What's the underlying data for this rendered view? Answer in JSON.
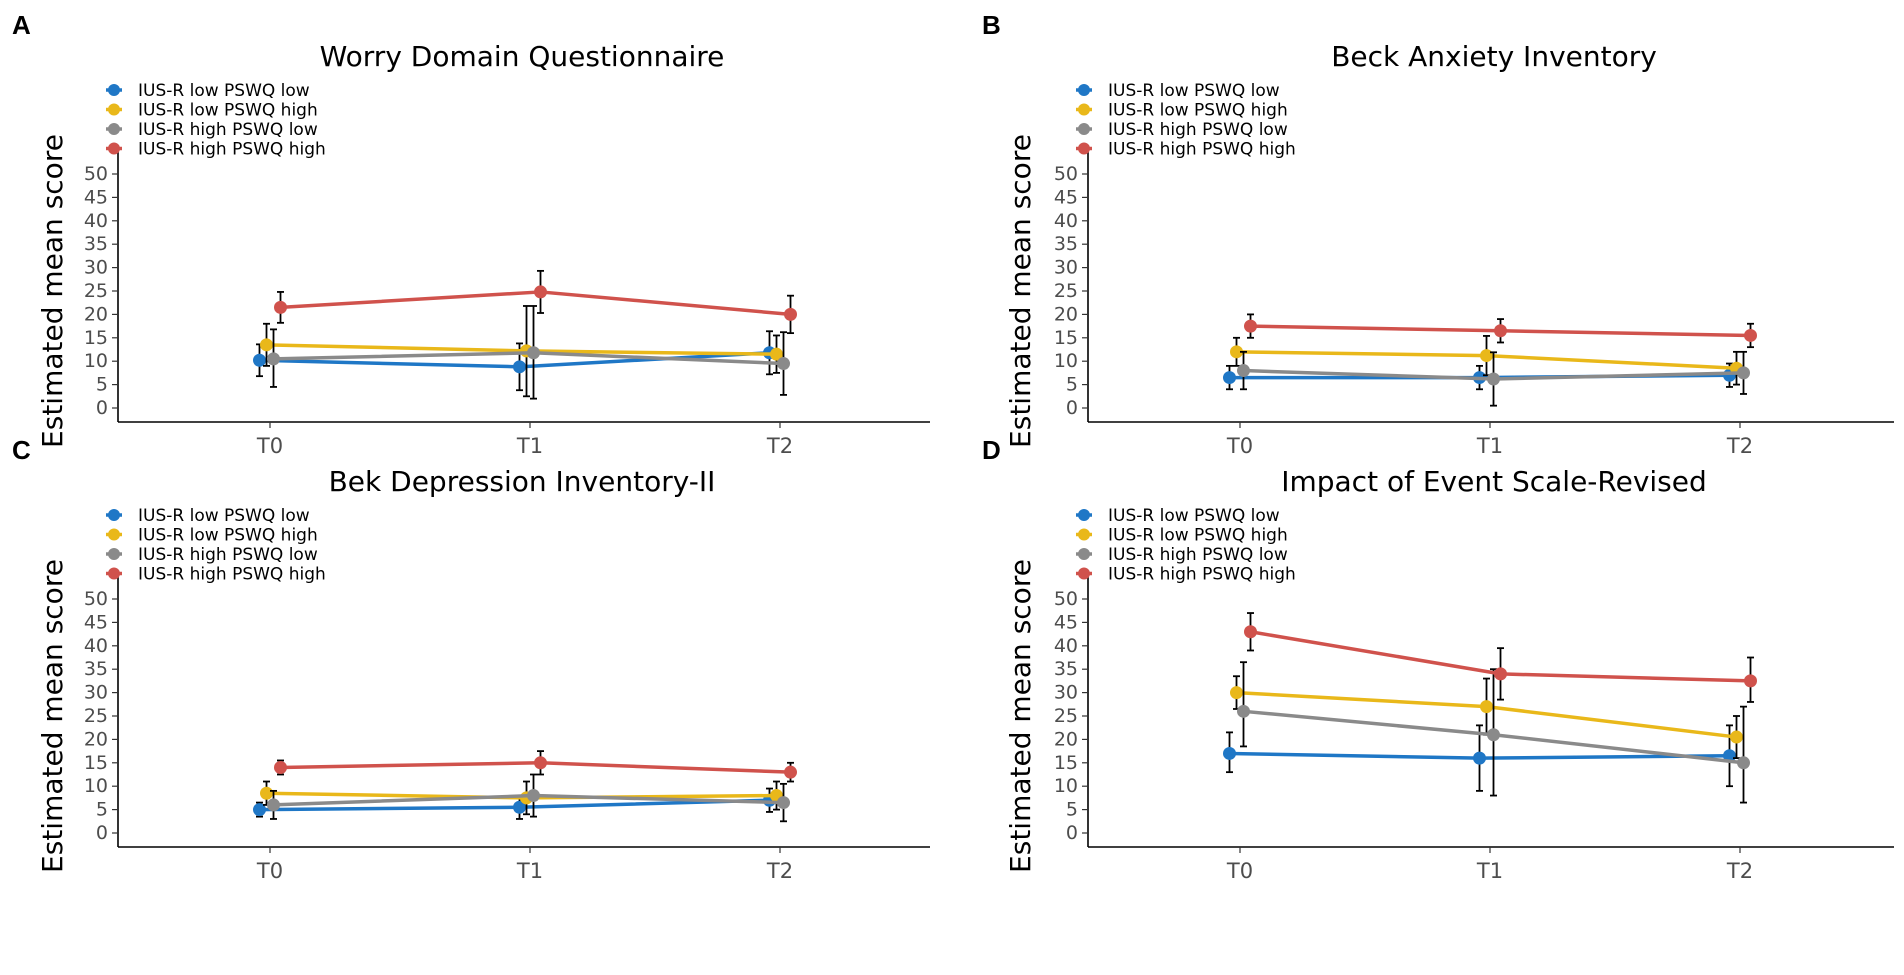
{
  "chart_data": [
    {
      "panel": "A",
      "type": "line",
      "title": "Worry Domain Questionnaire",
      "xlabel": "",
      "ylabel": "Estimated mean score",
      "categories": [
        "T0",
        "T1",
        "T2"
      ],
      "yticks": [
        0,
        5,
        10,
        15,
        20,
        25,
        30,
        35,
        40,
        45,
        50
      ],
      "ylim": [
        -2,
        56
      ],
      "legend_position": "top-left",
      "series": [
        {
          "name": "IUS-R low  PSWQ low",
          "color": "#1f77c6",
          "values": [
            10.2,
            8.8,
            11.8
          ],
          "ci_low": [
            6.8,
            3.8,
            7.2
          ],
          "ci_high": [
            13.6,
            13.8,
            16.4
          ]
        },
        {
          "name": "IUS-R low  PSWQ high",
          "color": "#e9b81a",
          "values": [
            13.5,
            12.2,
            11.5
          ],
          "ci_low": [
            9.0,
            2.5,
            7.5
          ],
          "ci_high": [
            18.0,
            21.8,
            15.5
          ]
        },
        {
          "name": "IUS-R high PSWQ low",
          "color": "#8a8a8a",
          "values": [
            10.5,
            11.8,
            9.5
          ],
          "ci_low": [
            4.5,
            2.0,
            2.8
          ],
          "ci_high": [
            16.8,
            21.8,
            16.2
          ]
        },
        {
          "name": "IUS-R high PSWQ high",
          "color": "#d0524c",
          "values": [
            21.5,
            24.8,
            20.0
          ],
          "ci_low": [
            18.2,
            20.3,
            16.0
          ],
          "ci_high": [
            24.8,
            29.3,
            24.0
          ]
        }
      ]
    },
    {
      "panel": "B",
      "type": "line",
      "title": "Beck Anxiety Inventory",
      "xlabel": "",
      "ylabel": "Estimated mean score",
      "categories": [
        "T0",
        "T1",
        "T2"
      ],
      "yticks": [
        0,
        5,
        10,
        15,
        20,
        25,
        30,
        35,
        40,
        45,
        50
      ],
      "ylim": [
        -2,
        56
      ],
      "legend_position": "top-left",
      "series": [
        {
          "name": "IUS-R low  PSWQ low",
          "color": "#1f77c6",
          "values": [
            6.5,
            6.5,
            7.0
          ],
          "ci_low": [
            4.0,
            4.0,
            4.5
          ],
          "ci_high": [
            9.0,
            9.0,
            9.5
          ]
        },
        {
          "name": "IUS-R low  PSWQ high",
          "color": "#e9b81a",
          "values": [
            12.0,
            11.2,
            8.5
          ],
          "ci_low": [
            9.0,
            7.0,
            5.0
          ],
          "ci_high": [
            15.0,
            15.4,
            12.0
          ]
        },
        {
          "name": "IUS-R high PSWQ low",
          "color": "#8a8a8a",
          "values": [
            8.0,
            6.2,
            7.5
          ],
          "ci_low": [
            4.0,
            0.5,
            3.0
          ],
          "ci_high": [
            12.0,
            11.9,
            12.0
          ]
        },
        {
          "name": "IUS-R high PSWQ high",
          "color": "#d0524c",
          "values": [
            17.5,
            16.5,
            15.5
          ],
          "ci_low": [
            15.0,
            14.0,
            13.0
          ],
          "ci_high": [
            20.0,
            19.0,
            18.0
          ]
        }
      ]
    },
    {
      "panel": "C",
      "type": "line",
      "title": "Bek Depression Inventory-II",
      "xlabel": "",
      "ylabel": "Estimated mean score",
      "categories": [
        "T0",
        "T1",
        "T2"
      ],
      "yticks": [
        0,
        5,
        10,
        15,
        20,
        25,
        30,
        35,
        40,
        45,
        50
      ],
      "ylim": [
        -2,
        56
      ],
      "legend_position": "top-left",
      "series": [
        {
          "name": "IUS-R low  PSWQ low",
          "color": "#1f77c6",
          "values": [
            5.0,
            5.5,
            7.0
          ],
          "ci_low": [
            3.5,
            3.0,
            4.5
          ],
          "ci_high": [
            6.5,
            8.0,
            9.5
          ]
        },
        {
          "name": "IUS-R low  PSWQ high",
          "color": "#e9b81a",
          "values": [
            8.5,
            7.5,
            8.0
          ],
          "ci_low": [
            6.0,
            4.0,
            5.0
          ],
          "ci_high": [
            11.0,
            11.0,
            11.0
          ]
        },
        {
          "name": "IUS-R high PSWQ low",
          "color": "#8a8a8a",
          "values": [
            6.0,
            8.0,
            6.5
          ],
          "ci_low": [
            3.0,
            3.5,
            2.5
          ],
          "ci_high": [
            9.0,
            12.5,
            10.5
          ]
        },
        {
          "name": "IUS-R high PSWQ high",
          "color": "#d0524c",
          "values": [
            14.0,
            15.0,
            13.0
          ],
          "ci_low": [
            12.5,
            12.5,
            11.0
          ],
          "ci_high": [
            15.5,
            17.5,
            15.0
          ]
        }
      ]
    },
    {
      "panel": "D",
      "type": "line",
      "title": "Impact of Event Scale-Revised",
      "xlabel": "",
      "ylabel": "Estimated mean score",
      "categories": [
        "T0",
        "T1",
        "T2"
      ],
      "yticks": [
        0,
        5,
        10,
        15,
        20,
        25,
        30,
        35,
        40,
        45,
        50
      ],
      "ylim": [
        -2,
        56
      ],
      "legend_position": "top-left",
      "series": [
        {
          "name": "IUS-R low  PSWQ low",
          "color": "#1f77c6",
          "values": [
            17.0,
            16.0,
            16.5
          ],
          "ci_low": [
            13.0,
            9.0,
            10.0
          ],
          "ci_high": [
            21.5,
            23.0,
            23.0
          ]
        },
        {
          "name": "IUS-R low  PSWQ high",
          "color": "#e9b81a",
          "values": [
            30.0,
            27.0,
            20.5
          ],
          "ci_low": [
            26.5,
            21.0,
            16.0
          ],
          "ci_high": [
            33.5,
            33.0,
            25.0
          ]
        },
        {
          "name": "IUS-R high PSWQ low",
          "color": "#8a8a8a",
          "values": [
            26.0,
            21.0,
            15.0
          ],
          "ci_low": [
            18.5,
            8.0,
            6.5
          ],
          "ci_high": [
            36.5,
            35.0,
            27.0
          ]
        },
        {
          "name": "IUS-R high PSWQ high",
          "color": "#d0524c",
          "values": [
            43.0,
            34.0,
            32.5
          ],
          "ci_low": [
            39.0,
            28.5,
            28.0
          ],
          "ci_high": [
            47.0,
            39.5,
            37.5
          ]
        }
      ]
    }
  ]
}
